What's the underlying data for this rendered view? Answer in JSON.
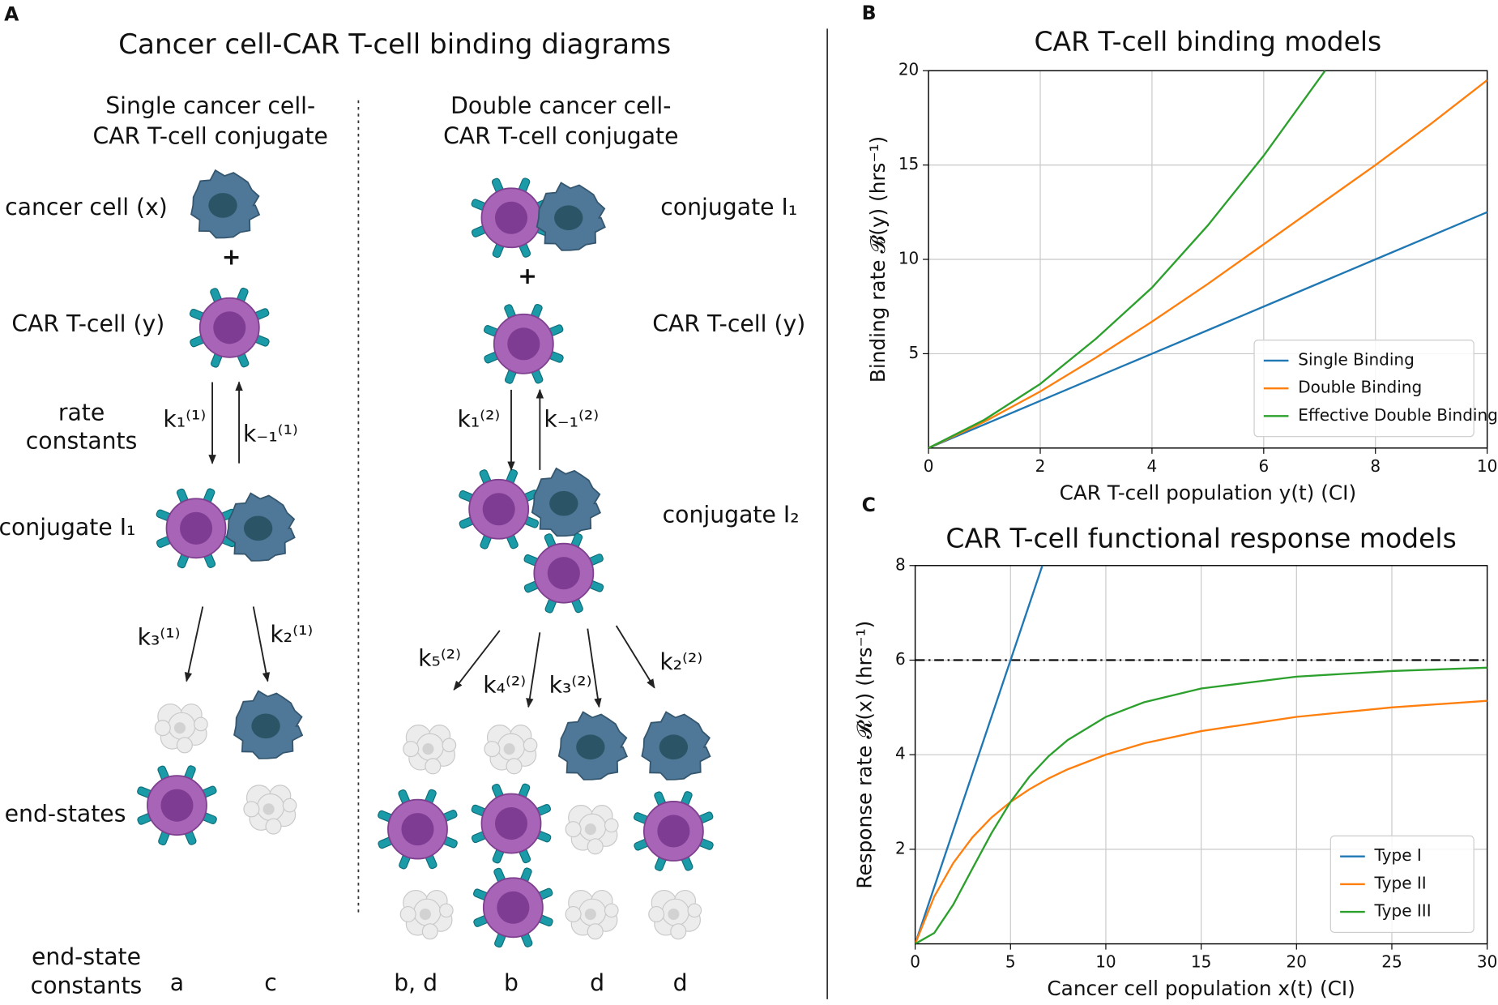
{
  "panel_a": {
    "label": "A",
    "title": "Cancer cell-CAR T-cell binding diagrams",
    "left_heading": [
      "Single cancer cell-",
      "CAR T-cell conjugate"
    ],
    "right_heading": [
      "Double cancer cell-",
      "CAR T-cell conjugate"
    ],
    "labels": [
      "cancer cell (x)",
      "+",
      "CAR T-cell (y)",
      "rate",
      "constants",
      "k₁⁽¹⁾",
      "k₋₁⁽¹⁾",
      "conjugate I₁",
      "k₃⁽¹⁾",
      "k₂⁽¹⁾",
      "end-states",
      "end-state",
      "constants",
      "a",
      "c",
      "b, d",
      "b",
      "d",
      "d",
      "conjugate I₁",
      "+",
      "CAR T-cell (y)",
      "k₁⁽²⁾",
      "k₋₁⁽²⁾",
      "conjugate I₂",
      "k₅⁽²⁾",
      "k₄⁽²⁾",
      "k₃⁽²⁾",
      "k₂⁽²⁾"
    ]
  },
  "chart_data": [
    {
      "panel": "B",
      "type": "line",
      "title": "CAR T-cell binding models",
      "xlabel": "CAR T-cell population y(t) (CI)",
      "ylabel": "Binding rate 𝓑(y) (hrs⁻¹)",
      "xlim": [
        0,
        10
      ],
      "ylim": [
        0,
        20
      ],
      "xticks": [
        0,
        2,
        4,
        6,
        8,
        10
      ],
      "yticks": [
        5,
        10,
        15,
        20
      ],
      "grid": true,
      "legend": "lower right",
      "series": [
        {
          "name": "Single Binding",
          "color": "#1f77b4",
          "x": [
            0,
            1,
            2,
            3,
            4,
            5,
            6,
            7,
            8,
            9,
            10
          ],
          "values": [
            0,
            1.25,
            2.5,
            3.75,
            5,
            6.25,
            7.5,
            8.75,
            10,
            11.25,
            12.5
          ]
        },
        {
          "name": "Double Binding",
          "color": "#ff7f0e",
          "x": [
            0,
            1,
            2,
            3,
            4,
            5,
            6,
            7,
            8,
            9,
            10
          ],
          "values": [
            0,
            1.4,
            3.0,
            4.8,
            6.7,
            8.7,
            10.8,
            12.9,
            15.0,
            17.2,
            19.5
          ]
        },
        {
          "name": "Effective Double Binding",
          "color": "#2ca02c",
          "x": [
            0,
            1,
            2,
            3,
            4,
            5,
            6,
            7,
            7.1
          ],
          "values": [
            0,
            1.5,
            3.4,
            5.8,
            8.5,
            11.8,
            15.5,
            19.6,
            20
          ]
        }
      ]
    },
    {
      "panel": "C",
      "type": "line",
      "title": "CAR T-cell functional response models",
      "xlabel": "Cancer cell population x(t) (CI)",
      "ylabel": "Response rate 𝓡(x) (hrs⁻¹)",
      "xlim": [
        0,
        30
      ],
      "ylim": [
        0,
        8
      ],
      "xticks": [
        0,
        5,
        10,
        15,
        20,
        25,
        30
      ],
      "yticks": [
        2,
        4,
        6,
        8
      ],
      "grid": true,
      "legend": "lower right",
      "hline": 6,
      "series": [
        {
          "name": "Type I",
          "color": "#1f77b4",
          "x": [
            0,
            6.67
          ],
          "values": [
            0,
            8
          ]
        },
        {
          "name": "Type II",
          "color": "#ff7f0e",
          "x": [
            0,
            1,
            2,
            3,
            4,
            5,
            6,
            7,
            8,
            10,
            12,
            15,
            20,
            25,
            30
          ],
          "values": [
            0,
            1.0,
            1.71,
            2.25,
            2.67,
            3.0,
            3.27,
            3.5,
            3.69,
            4.0,
            4.24,
            4.5,
            4.8,
            5.0,
            5.14
          ]
        },
        {
          "name": "Type III",
          "color": "#2ca02c",
          "x": [
            0,
            1,
            2,
            3,
            4,
            5,
            6,
            7,
            8,
            10,
            12,
            15,
            20,
            25,
            30
          ],
          "values": [
            0,
            0.23,
            0.83,
            1.59,
            2.34,
            3.0,
            3.54,
            3.97,
            4.31,
            4.8,
            5.11,
            5.4,
            5.65,
            5.77,
            5.84
          ]
        }
      ]
    }
  ]
}
